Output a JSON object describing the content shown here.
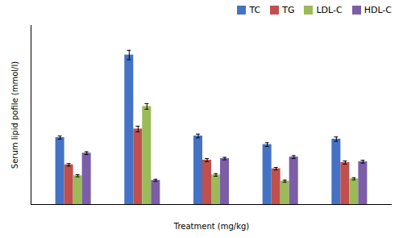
{
  "chart_data": {
    "type": "bar",
    "xlabel": "Treatment (mg/kg)",
    "ylabel": "Serum lipid pofile (mmol/l)",
    "categories": [
      null,
      null,
      null,
      null,
      null
    ],
    "series": [
      {
        "name": "TC",
        "color": "#4472C4",
        "values": [
          4.3,
          9.6,
          4.4,
          3.85,
          4.2
        ],
        "errors": [
          0.1,
          0.3,
          0.12,
          0.12,
          0.14
        ]
      },
      {
        "name": "TG",
        "color": "#C0504D",
        "values": [
          2.55,
          4.85,
          2.85,
          2.3,
          2.7
        ],
        "errors": [
          0.08,
          0.18,
          0.1,
          0.08,
          0.1
        ]
      },
      {
        "name": "LDL-C",
        "color": "#9BBB59",
        "values": [
          1.85,
          6.3,
          1.9,
          1.5,
          1.65
        ],
        "errors": [
          0.07,
          0.18,
          0.08,
          0.07,
          0.07
        ]
      },
      {
        "name": "HDL-C",
        "color": "#7B5EA7",
        "values": [
          3.3,
          1.55,
          2.95,
          3.05,
          2.75
        ],
        "errors": [
          0.09,
          0.07,
          0.08,
          0.09,
          0.09
        ]
      }
    ],
    "ylim": [
      0,
      11.5
    ],
    "yticks": [],
    "tick_labels": false,
    "legend": "upper right"
  }
}
